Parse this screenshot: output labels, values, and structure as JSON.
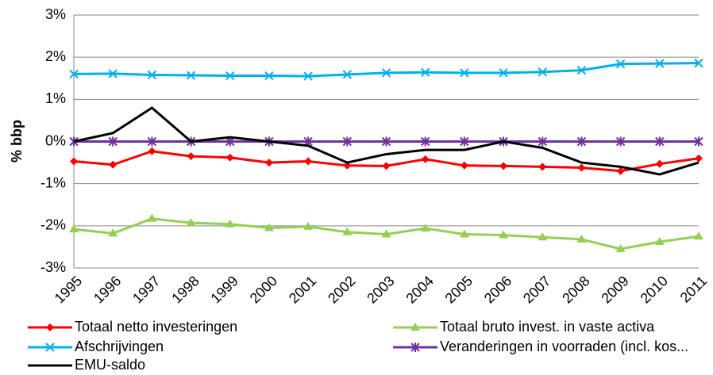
{
  "chart_data": {
    "type": "line",
    "ylabel": "% bbp",
    "categories": [
      "1995",
      "1996",
      "1997",
      "1998",
      "1999",
      "2000",
      "2001",
      "2002",
      "2003",
      "2004",
      "2005",
      "2006",
      "2007",
      "2008",
      "2009",
      "2010",
      "2011"
    ],
    "ylim": [
      -3,
      3
    ],
    "yticks": [
      {
        "value": -3,
        "label": "-3%"
      },
      {
        "value": -2,
        "label": "-2%"
      },
      {
        "value": -1,
        "label": "-1%"
      },
      {
        "value": 0,
        "label": "0%"
      },
      {
        "value": 1,
        "label": "1%"
      },
      {
        "value": 2,
        "label": "2%"
      },
      {
        "value": 3,
        "label": "3%"
      }
    ],
    "grid": true,
    "series": [
      {
        "name": "Totaal netto investeringen",
        "color": "#ff0000",
        "marker": "diamond",
        "values": [
          -0.47,
          -0.55,
          -0.23,
          -0.35,
          -0.38,
          -0.5,
          -0.47,
          -0.57,
          -0.58,
          -0.42,
          -0.57,
          -0.58,
          -0.6,
          -0.62,
          -0.7,
          -0.53,
          -0.4
        ]
      },
      {
        "name": "Totaal bruto invest. in vaste activa",
        "color": "#92d050",
        "marker": "triangle",
        "values": [
          -2.08,
          -2.18,
          -1.83,
          -1.93,
          -1.96,
          -2.05,
          -2.02,
          -2.15,
          -2.2,
          -2.06,
          -2.2,
          -2.22,
          -2.27,
          -2.32,
          -2.55,
          -2.38,
          -2.25
        ]
      },
      {
        "name": "Afschrijvingen",
        "color": "#00b0f0",
        "marker": "x",
        "values": [
          1.6,
          1.61,
          1.58,
          1.57,
          1.56,
          1.56,
          1.55,
          1.59,
          1.63,
          1.64,
          1.63,
          1.63,
          1.65,
          1.69,
          1.84,
          1.85,
          1.86
        ]
      },
      {
        "name": "Veranderingen in voorraden (incl. kos...",
        "color": "#7030a0",
        "marker": "star",
        "values": [
          0,
          0,
          0,
          0,
          0,
          0,
          0,
          0,
          0,
          0,
          0,
          0,
          0,
          0,
          0,
          0,
          0
        ]
      },
      {
        "name": "EMU-saldo",
        "color": "#000000",
        "marker": "none",
        "values": [
          0,
          0.2,
          0.8,
          0,
          0.1,
          0,
          -0.1,
          -0.5,
          -0.3,
          -0.2,
          -0.2,
          0,
          -0.15,
          -0.5,
          -0.6,
          -0.78,
          -0.5
        ]
      }
    ]
  }
}
